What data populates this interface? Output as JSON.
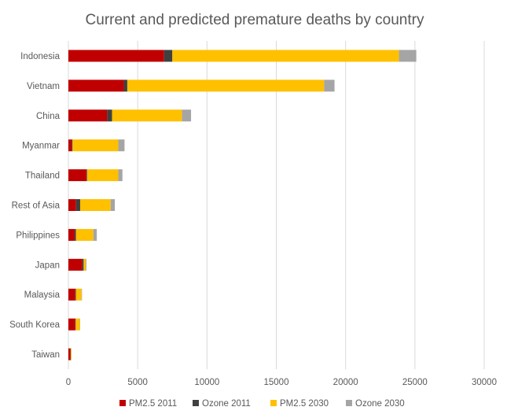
{
  "chart_data": {
    "type": "bar",
    "orientation": "horizontal",
    "stacked": true,
    "title": "Current and predicted premature deaths by country",
    "categories": [
      "Indonesia",
      "Vietnam",
      "China",
      "Myanmar",
      "Thailand",
      "Rest of Asia",
      "Philippines",
      "Japan",
      "Malaysia",
      "South Korea",
      "Taiwan"
    ],
    "series": [
      {
        "name": "PM2.5 2011",
        "color": "#c00000",
        "values": [
          6900,
          4000,
          2800,
          250,
          1300,
          550,
          450,
          1000,
          500,
          500,
          150
        ]
      },
      {
        "name": "Ozone 2011",
        "color": "#404040",
        "values": [
          600,
          250,
          350,
          50,
          50,
          300,
          100,
          100,
          50,
          30,
          20
        ]
      },
      {
        "name": "PM2.5 2030",
        "color": "#ffc000",
        "values": [
          16350,
          14200,
          5050,
          3300,
          2250,
          2200,
          1250,
          150,
          400,
          300,
          50
        ]
      },
      {
        "name": "Ozone 2030",
        "color": "#a5a5a5",
        "values": [
          1250,
          750,
          650,
          450,
          300,
          300,
          250,
          50,
          30,
          20,
          10
        ]
      }
    ],
    "x_ticks": [
      "0",
      "5000",
      "10000",
      "15000",
      "20000",
      "25000",
      "30000"
    ],
    "xlim": [
      0,
      30000
    ],
    "grid": true,
    "legend_position": "bottom"
  }
}
